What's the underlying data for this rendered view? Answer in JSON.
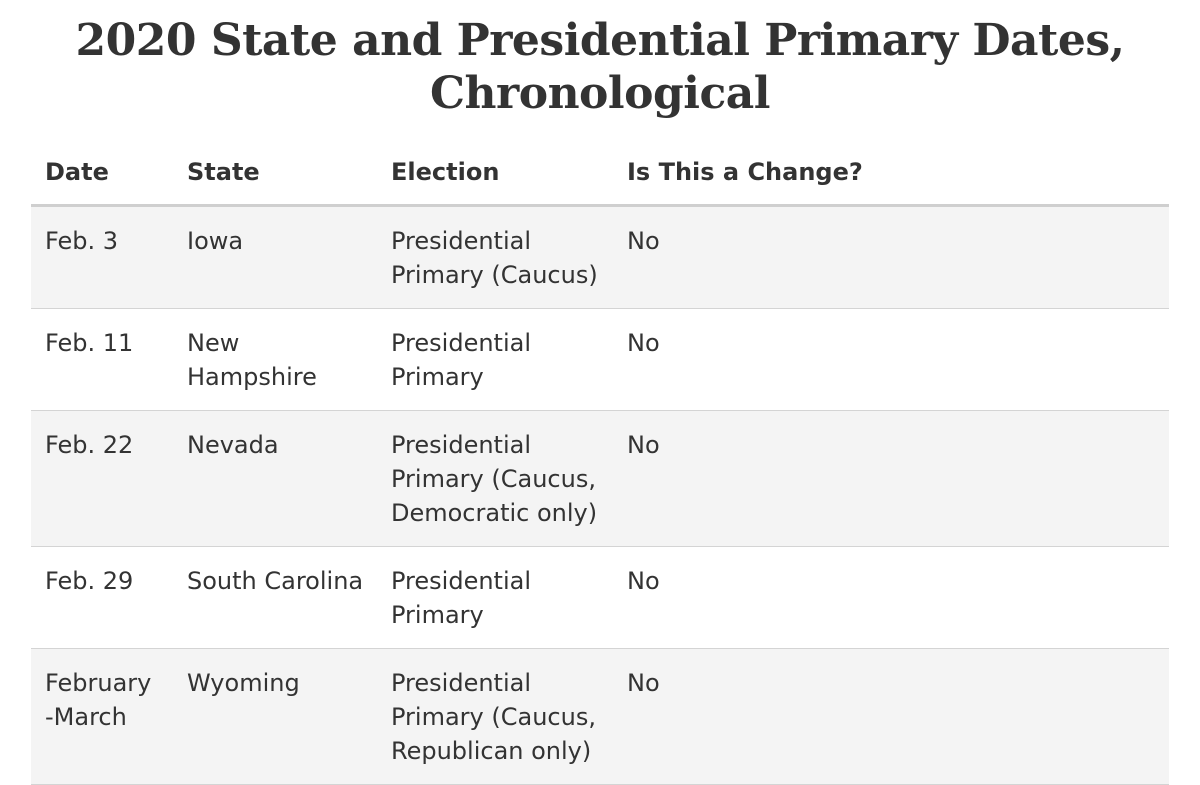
{
  "title": "2020 State and Presidential Primary Dates, Chronological",
  "table": {
    "headers": {
      "date": "Date",
      "state": "State",
      "election": "Election",
      "change": "Is This a Change?"
    },
    "rows": [
      {
        "date": "Feb. 3",
        "state": "Iowa",
        "election": "Presidential Primary (Caucus)",
        "change": "No"
      },
      {
        "date": "Feb. 11",
        "state": "New Hampshire",
        "election": "Presidential Primary",
        "change": "No"
      },
      {
        "date": "Feb. 22",
        "state": "Nevada",
        "election": "Presidential Primary (Caucus, Democratic only)",
        "change": "No"
      },
      {
        "date": "Feb. 29",
        "state": "South Carolina",
        "election": "Presidential Primary",
        "change": "No"
      },
      {
        "date": "February-March",
        "state": "Wyoming",
        "election": "Presidential Primary (Caucus, Republican only)",
        "change": "No"
      }
    ]
  }
}
